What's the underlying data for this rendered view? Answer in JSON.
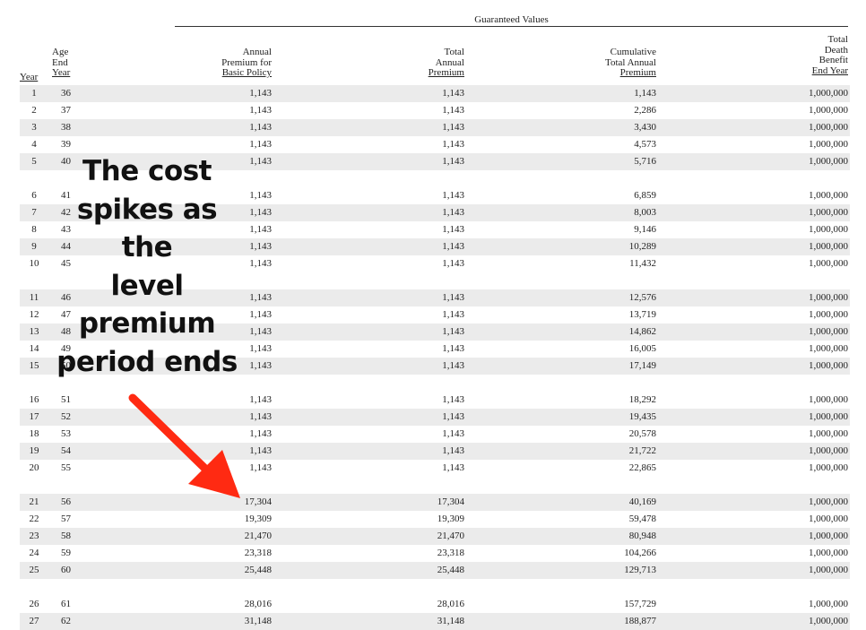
{
  "section_title": "Guaranteed Values",
  "headers": {
    "year": [
      "Year"
    ],
    "age": [
      "Age",
      "End",
      "Year"
    ],
    "annual_premium": [
      "Annual",
      "Premium for",
      "Basic Policy"
    ],
    "total_premium": [
      "Total",
      "Annual",
      "Premium"
    ],
    "cumulative": [
      "Cumulative",
      "Total Annual",
      "Premium"
    ],
    "death_benefit": [
      "Total",
      "Death",
      "Benefit",
      "End Year"
    ]
  },
  "callout": {
    "lines": [
      "The cost",
      "spikes as",
      "the",
      "level",
      "premium",
      "period ends"
    ],
    "arrow_color": "#ff2a12"
  },
  "rows": [
    {
      "year": "1",
      "age": "36",
      "annual": "1,143",
      "total": "1,143",
      "cumulative": "1,143",
      "death": "1,000,000"
    },
    {
      "year": "2",
      "age": "37",
      "annual": "1,143",
      "total": "1,143",
      "cumulative": "2,286",
      "death": "1,000,000"
    },
    {
      "year": "3",
      "age": "38",
      "annual": "1,143",
      "total": "1,143",
      "cumulative": "3,430",
      "death": "1,000,000"
    },
    {
      "year": "4",
      "age": "39",
      "annual": "1,143",
      "total": "1,143",
      "cumulative": "4,573",
      "death": "1,000,000"
    },
    {
      "year": "5",
      "age": "40",
      "annual": "1,143",
      "total": "1,143",
      "cumulative": "5,716",
      "death": "1,000,000"
    },
    {
      "year": "6",
      "age": "41",
      "annual": "1,143",
      "total": "1,143",
      "cumulative": "6,859",
      "death": "1,000,000"
    },
    {
      "year": "7",
      "age": "42",
      "annual": "1,143",
      "total": "1,143",
      "cumulative": "8,003",
      "death": "1,000,000"
    },
    {
      "year": "8",
      "age": "43",
      "annual": "1,143",
      "total": "1,143",
      "cumulative": "9,146",
      "death": "1,000,000"
    },
    {
      "year": "9",
      "age": "44",
      "annual": "1,143",
      "total": "1,143",
      "cumulative": "10,289",
      "death": "1,000,000"
    },
    {
      "year": "10",
      "age": "45",
      "annual": "1,143",
      "total": "1,143",
      "cumulative": "11,432",
      "death": "1,000,000"
    },
    {
      "year": "11",
      "age": "46",
      "annual": "1,143",
      "total": "1,143",
      "cumulative": "12,576",
      "death": "1,000,000"
    },
    {
      "year": "12",
      "age": "47",
      "annual": "1,143",
      "total": "1,143",
      "cumulative": "13,719",
      "death": "1,000,000"
    },
    {
      "year": "13",
      "age": "48",
      "annual": "1,143",
      "total": "1,143",
      "cumulative": "14,862",
      "death": "1,000,000"
    },
    {
      "year": "14",
      "age": "49",
      "annual": "1,143",
      "total": "1,143",
      "cumulative": "16,005",
      "death": "1,000,000"
    },
    {
      "year": "15",
      "age": "50",
      "annual": "1,143",
      "total": "1,143",
      "cumulative": "17,149",
      "death": "1,000,000"
    },
    {
      "year": "16",
      "age": "51",
      "annual": "1,143",
      "total": "1,143",
      "cumulative": "18,292",
      "death": "1,000,000"
    },
    {
      "year": "17",
      "age": "52",
      "annual": "1,143",
      "total": "1,143",
      "cumulative": "19,435",
      "death": "1,000,000"
    },
    {
      "year": "18",
      "age": "53",
      "annual": "1,143",
      "total": "1,143",
      "cumulative": "20,578",
      "death": "1,000,000"
    },
    {
      "year": "19",
      "age": "54",
      "annual": "1,143",
      "total": "1,143",
      "cumulative": "21,722",
      "death": "1,000,000"
    },
    {
      "year": "20",
      "age": "55",
      "annual": "1,143",
      "total": "1,143",
      "cumulative": "22,865",
      "death": "1,000,000"
    },
    {
      "year": "21",
      "age": "56",
      "annual": "17,304",
      "total": "17,304",
      "cumulative": "40,169",
      "death": "1,000,000"
    },
    {
      "year": "22",
      "age": "57",
      "annual": "19,309",
      "total": "19,309",
      "cumulative": "59,478",
      "death": "1,000,000"
    },
    {
      "year": "23",
      "age": "58",
      "annual": "21,470",
      "total": "21,470",
      "cumulative": "80,948",
      "death": "1,000,000"
    },
    {
      "year": "24",
      "age": "59",
      "annual": "23,318",
      "total": "23,318",
      "cumulative": "104,266",
      "death": "1,000,000"
    },
    {
      "year": "25",
      "age": "60",
      "annual": "25,448",
      "total": "25,448",
      "cumulative": "129,713",
      "death": "1,000,000"
    },
    {
      "year": "26",
      "age": "61",
      "annual": "28,016",
      "total": "28,016",
      "cumulative": "157,729",
      "death": "1,000,000"
    },
    {
      "year": "27",
      "age": "62",
      "annual": "31,148",
      "total": "31,148",
      "cumulative": "188,877",
      "death": "1,000,000"
    }
  ]
}
